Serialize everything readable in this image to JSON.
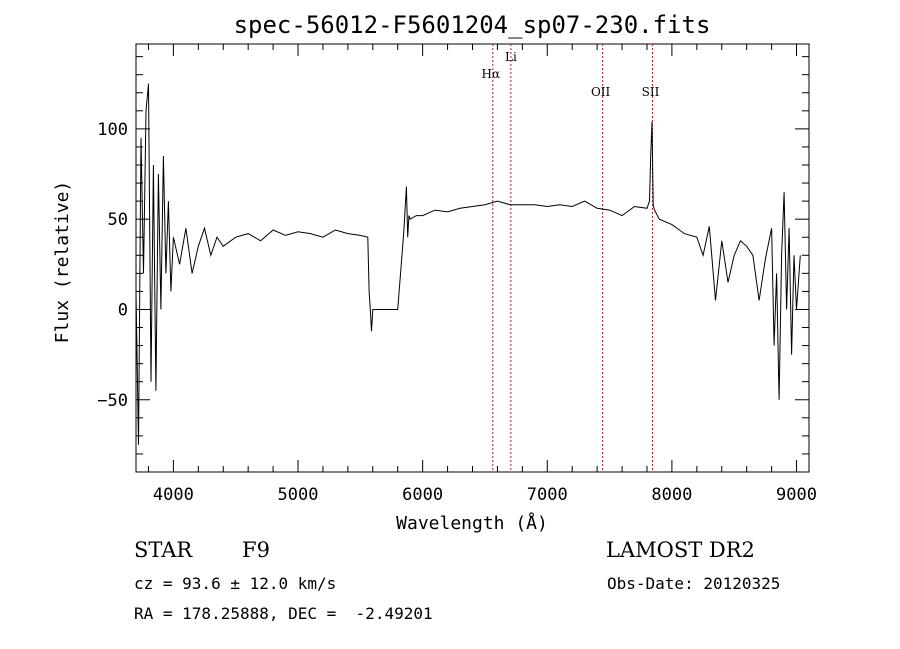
{
  "chart_data": {
    "type": "line",
    "title": "spec-56012-F5601204_sp07-230.fits",
    "xlabel": "Wavelength (Å)",
    "ylabel": "Flux (relative)",
    "xlim": [
      3700,
      9100
    ],
    "ylim": [
      -90,
      147
    ],
    "xticks": [
      4000,
      5000,
      6000,
      7000,
      8000,
      9000
    ],
    "yticks": [
      -50,
      0,
      50,
      100
    ],
    "series": [
      {
        "x": [
          3700,
          3720,
          3740,
          3760,
          3780,
          3800,
          3820,
          3840,
          3860,
          3880,
          3900,
          3920,
          3940,
          3960,
          3980,
          4000,
          4050,
          4100,
          4150,
          4200,
          4250,
          4300,
          4350,
          4400,
          4500,
          4600,
          4700,
          4800,
          4900,
          5000,
          5100,
          5200,
          5300,
          5400,
          5500,
          5560,
          5570,
          5580,
          5590,
          5600,
          5700,
          5800,
          5840,
          5850,
          5870,
          5880,
          5890,
          5900,
          5950,
          6000,
          6100,
          6200,
          6300,
          6400,
          6500,
          6600,
          6700,
          6800,
          6900,
          7000,
          7100,
          7200,
          7300,
          7400,
          7500,
          7600,
          7700,
          7800,
          7820,
          7830,
          7840,
          7850,
          7860,
          7900,
          8000,
          8100,
          8200,
          8250,
          8300,
          8350,
          8400,
          8450,
          8500,
          8550,
          8600,
          8650,
          8700,
          8750,
          8800,
          8820,
          8840,
          8860,
          8880,
          8900,
          8920,
          8940,
          8960,
          8980,
          9000,
          9030
        ],
        "y": [
          10,
          -75,
          95,
          20,
          110,
          125,
          -40,
          80,
          -45,
          75,
          0,
          85,
          20,
          60,
          10,
          40,
          25,
          45,
          20,
          35,
          45,
          30,
          40,
          35,
          40,
          42,
          38,
          44,
          41,
          43,
          42,
          40,
          44,
          42,
          41,
          40,
          10,
          0,
          -12,
          0,
          0,
          0,
          35,
          45,
          68,
          40,
          52,
          50,
          52,
          52,
          55,
          54,
          56,
          57,
          58,
          60,
          58,
          58,
          58,
          57,
          58,
          57,
          60,
          56,
          55,
          52,
          57,
          56,
          60,
          85,
          104,
          58,
          55,
          50,
          47,
          42,
          40,
          30,
          46,
          5,
          38,
          15,
          30,
          38,
          35,
          30,
          5,
          28,
          45,
          -20,
          20,
          -50,
          30,
          65,
          0,
          45,
          -25,
          30,
          0,
          30
        ]
      }
    ],
    "annotations": [
      {
        "label": "Hα",
        "x": 6563
      },
      {
        "label": "Li",
        "x": 6708
      },
      {
        "label": "OII",
        "x": 7444
      },
      {
        "label": "SII",
        "x": 7844
      }
    ],
    "grid": false,
    "legend": "none"
  },
  "info": {
    "object_class": "STAR",
    "subclass": "F9",
    "survey": "LAMOST DR2",
    "redshift": "cz = 93.6 ± 12.0 km/s",
    "obs_date": "Obs-Date: 20120325",
    "coords": "RA = 178.25888, DEC =  -2.49201"
  }
}
